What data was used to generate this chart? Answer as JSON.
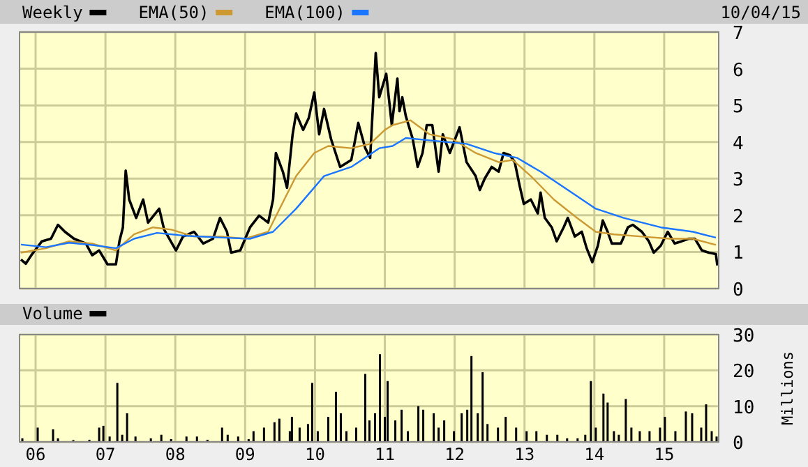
{
  "chart_data": [
    {
      "type": "line",
      "legend": "top",
      "grid": true,
      "tick_labels": "y",
      "annotations": [
        "10/04/15"
      ],
      "xlim": [
        2005.77,
        2015.78
      ],
      "ylim": [
        0,
        7
      ],
      "xticks": [
        {
          "value": 2006,
          "label": null
        },
        {
          "value": 2007,
          "label": null
        },
        {
          "value": 2008,
          "label": null
        },
        {
          "value": 2009,
          "label": null
        },
        {
          "value": 2010,
          "label": null
        },
        {
          "value": 2011,
          "label": null
        },
        {
          "value": 2012,
          "label": null
        },
        {
          "value": 2013,
          "label": null
        },
        {
          "value": 2014,
          "label": null
        },
        {
          "value": 2015,
          "label": null
        }
      ],
      "yticks": [
        0,
        1,
        2,
        3,
        4,
        5,
        6,
        7
      ],
      "series": [
        {
          "name": "Weekly",
          "color": "#000000",
          "x": [
            2005.79,
            2005.86,
            2005.95,
            2006.09,
            2006.22,
            2006.32,
            2006.42,
            2006.55,
            2006.72,
            2006.81,
            2006.91,
            2007.03,
            2007.15,
            2007.2,
            2007.25,
            2007.29,
            2007.34,
            2007.44,
            2007.54,
            2007.61,
            2007.77,
            2007.84,
            2008.01,
            2008.11,
            2008.27,
            2008.4,
            2008.54,
            2008.64,
            2008.74,
            2008.8,
            2008.93,
            2009.07,
            2009.2,
            2009.33,
            2009.4,
            2009.44,
            2009.54,
            2009.6,
            2009.68,
            2009.73,
            2009.83,
            2009.91,
            2009.99,
            2010.06,
            2010.13,
            2010.23,
            2010.36,
            2010.52,
            2010.62,
            2010.72,
            2010.79,
            2010.87,
            2010.92,
            2011.02,
            2011.1,
            2011.18,
            2011.21,
            2011.25,
            2011.3,
            2011.4,
            2011.47,
            2011.54,
            2011.6,
            2011.68,
            2011.77,
            2011.83,
            2011.93,
            2012.07,
            2012.17,
            2012.3,
            2012.36,
            2012.43,
            2012.53,
            2012.63,
            2012.7,
            2012.79,
            2012.86,
            2012.93,
            2012.99,
            2013.09,
            2013.19,
            2013.23,
            2013.29,
            2013.39,
            2013.46,
            2013.56,
            2013.62,
            2013.72,
            2013.82,
            2013.89,
            2013.97,
            2014.05,
            2014.12,
            2014.19,
            2014.25,
            2014.38,
            2014.48,
            2014.55,
            2014.68,
            2014.78,
            2014.85,
            2014.95,
            2015.05,
            2015.15,
            2015.25,
            2015.35,
            2015.44,
            2015.54,
            2015.64,
            2015.74,
            2015.76
          ],
          "values": [
            0.79,
            0.68,
            0.94,
            1.29,
            1.36,
            1.74,
            1.55,
            1.36,
            1.23,
            0.91,
            1.04,
            0.66,
            0.66,
            1.29,
            1.67,
            3.22,
            2.43,
            1.93,
            2.43,
            1.8,
            2.18,
            1.61,
            1.04,
            1.42,
            1.55,
            1.23,
            1.36,
            1.93,
            1.55,
            0.98,
            1.04,
            1.67,
            1.99,
            1.8,
            2.43,
            3.7,
            3.19,
            2.75,
            4.21,
            4.78,
            4.33,
            4.65,
            5.35,
            4.21,
            4.9,
            4.08,
            3.32,
            3.51,
            4.52,
            3.83,
            3.57,
            6.43,
            5.22,
            5.86,
            4.46,
            5.73,
            4.84,
            5.22,
            4.71,
            4.08,
            3.32,
            3.7,
            4.46,
            4.46,
            3.19,
            4.21,
            3.7,
            4.4,
            3.45,
            3.07,
            2.69,
            3.0,
            3.32,
            3.19,
            3.7,
            3.64,
            3.45,
            2.81,
            2.31,
            2.43,
            2.05,
            2.62,
            1.93,
            1.67,
            1.29,
            1.67,
            1.93,
            1.42,
            1.55,
            1.1,
            0.72,
            1.17,
            1.86,
            1.55,
            1.23,
            1.23,
            1.67,
            1.74,
            1.55,
            1.29,
            0.98,
            1.17,
            1.55,
            1.23,
            1.29,
            1.36,
            1.36,
            1.04,
            0.98,
            0.94,
            0.63
          ]
        },
        {
          "name": "EMA(50)",
          "color": "#cc9933",
          "x": [
            2005.79,
            2006.15,
            2006.48,
            2006.81,
            2007.15,
            2007.41,
            2007.68,
            2007.94,
            2008.27,
            2008.67,
            2009.0,
            2009.33,
            2009.46,
            2009.73,
            2009.99,
            2010.19,
            2010.52,
            2010.79,
            2011.0,
            2011.11,
            2011.37,
            2011.64,
            2011.97,
            2012.3,
            2012.63,
            2012.83,
            2013.09,
            2013.42,
            2013.75,
            2014.02,
            2014.28,
            2014.68,
            2015.08,
            2015.41,
            2015.74
          ],
          "values": [
            0.98,
            1.1,
            1.29,
            1.23,
            1.04,
            1.48,
            1.67,
            1.61,
            1.42,
            1.42,
            1.36,
            1.55,
            2.05,
            3.07,
            3.7,
            3.89,
            3.83,
            3.95,
            4.33,
            4.46,
            4.59,
            4.21,
            4.08,
            3.7,
            3.45,
            3.51,
            3.07,
            2.43,
            1.93,
            1.55,
            1.48,
            1.42,
            1.36,
            1.36,
            1.19
          ]
        },
        {
          "name": "EMA(100)",
          "color": "#1a75ff",
          "x": [
            2005.79,
            2006.15,
            2006.48,
            2006.81,
            2007.15,
            2007.41,
            2007.74,
            2008.14,
            2008.67,
            2009.07,
            2009.4,
            2009.73,
            2010.13,
            2010.52,
            2010.92,
            2011.11,
            2011.3,
            2011.77,
            2012.17,
            2012.56,
            2012.89,
            2013.23,
            2013.62,
            2014.02,
            2014.42,
            2014.95,
            2015.41,
            2015.74
          ],
          "values": [
            1.2,
            1.13,
            1.25,
            1.19,
            1.1,
            1.36,
            1.52,
            1.44,
            1.39,
            1.36,
            1.55,
            2.18,
            3.07,
            3.32,
            3.83,
            3.89,
            4.11,
            4.02,
            3.95,
            3.7,
            3.57,
            3.19,
            2.69,
            2.18,
            1.93,
            1.67,
            1.55,
            1.39
          ]
        }
      ]
    },
    {
      "type": "bar",
      "legend": "top",
      "grid": true,
      "ylabel": "Millions",
      "xlim": [
        2005.77,
        2015.78
      ],
      "ylim": [
        0,
        30
      ],
      "xticks": [
        {
          "value": 2006,
          "label": "06"
        },
        {
          "value": 2007,
          "label": "07"
        },
        {
          "value": 2008,
          "label": "08"
        },
        {
          "value": 2009,
          "label": "09"
        },
        {
          "value": 2010,
          "label": "10"
        },
        {
          "value": 2011,
          "label": "11"
        },
        {
          "value": 2012,
          "label": "12"
        },
        {
          "value": 2013,
          "label": "13"
        },
        {
          "value": 2014,
          "label": "14"
        },
        {
          "value": 2015,
          "label": "15"
        }
      ],
      "yticks": [
        0,
        10,
        20,
        30
      ],
      "series": [
        {
          "name": "Volume",
          "color": "#000000",
          "x": [
            2005.81,
            2006.03,
            2006.25,
            2006.32,
            2006.54,
            2006.77,
            2006.91,
            2006.97,
            2007.06,
            2007.17,
            2007.24,
            2007.31,
            2007.43,
            2007.65,
            2007.8,
            2007.94,
            2008.16,
            2008.31,
            2008.46,
            2008.67,
            2008.75,
            2008.9,
            2009.05,
            2009.12,
            2009.27,
            2009.42,
            2009.49,
            2009.64,
            2009.67,
            2009.78,
            2009.9,
            2009.96,
            2010.04,
            2010.19,
            2010.3,
            2010.37,
            2010.45,
            2010.59,
            2010.72,
            2010.78,
            2010.86,
            2010.93,
            2011.0,
            2011.04,
            2011.15,
            2011.24,
            2011.33,
            2011.48,
            2011.55,
            2011.7,
            2011.77,
            2011.85,
            2011.99,
            2012.1,
            2012.18,
            2012.24,
            2012.33,
            2012.4,
            2012.47,
            2012.62,
            2012.73,
            2012.88,
            2013.03,
            2013.17,
            2013.32,
            2013.47,
            2013.61,
            2013.76,
            2013.87,
            2013.95,
            2014.02,
            2014.13,
            2014.19,
            2014.28,
            2014.35,
            2014.45,
            2014.53,
            2014.65,
            2014.79,
            2014.94,
            2015.01,
            2015.16,
            2015.31,
            2015.4,
            2015.53,
            2015.6,
            2015.68,
            2015.75
          ],
          "values": [
            1,
            4,
            3.5,
            1,
            0.5,
            0.6,
            4,
            4.5,
            1.5,
            16.5,
            2,
            8,
            1.5,
            1,
            2,
            0.8,
            1.5,
            1.5,
            0.6,
            4,
            2,
            1.5,
            0.8,
            3,
            4,
            5.5,
            6.5,
            3,
            7,
            4,
            5,
            16.5,
            3,
            7,
            14,
            8,
            3,
            4,
            19,
            6,
            8,
            24.5,
            7,
            17,
            6,
            9,
            3,
            10,
            9,
            8,
            4,
            6,
            3,
            8,
            9,
            24,
            8,
            19.5,
            5,
            4,
            7,
            4,
            3,
            3,
            2,
            2,
            1,
            1,
            2,
            17,
            4,
            13.5,
            11,
            3,
            2,
            12,
            4,
            3,
            3,
            4,
            7,
            3,
            8.5,
            8,
            4,
            10.5,
            3,
            1.5
          ]
        }
      ]
    }
  ]
}
